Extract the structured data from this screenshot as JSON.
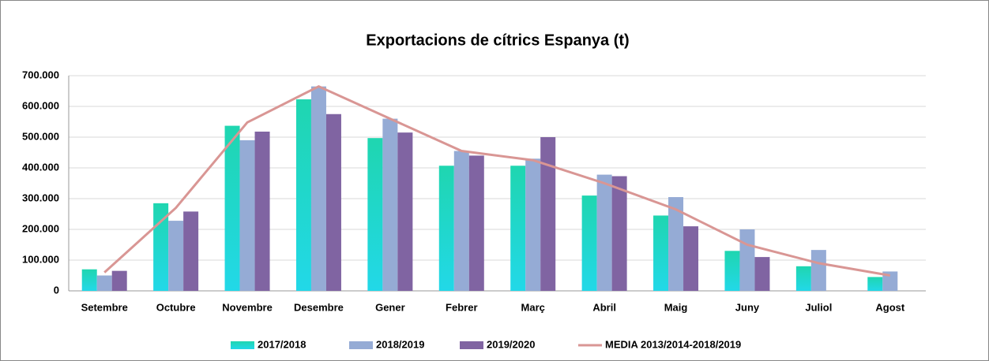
{
  "chart_data": {
    "type": "bar",
    "title": "Exportacions de cítrics Espanya (t)",
    "categories": [
      "Setembre",
      "Octubre",
      "Novembre",
      "Desembre",
      "Gener",
      "Febrer",
      "Març",
      "Abril",
      "Maig",
      "Juny",
      "Juliol",
      "Agost"
    ],
    "series": [
      {
        "name": "2017/2018",
        "color": "#1fd6c4",
        "values": [
          70000,
          285000,
          537000,
          623000,
          497000,
          407000,
          407000,
          310000,
          245000,
          130000,
          80000,
          45000
        ]
      },
      {
        "name": "2018/2019",
        "color": "#95abd5",
        "values": [
          50000,
          228000,
          490000,
          665000,
          560000,
          455000,
          430000,
          378000,
          305000,
          200000,
          133000,
          63000
        ]
      },
      {
        "name": "2019/2020",
        "color": "#8064a2",
        "values": [
          65000,
          258000,
          518000,
          575000,
          515000,
          440000,
          500000,
          373000,
          210000,
          110000,
          null,
          null
        ]
      },
      {
        "name": "MEDIA 2013/2014-2018/2019",
        "type": "line",
        "color": "#d99694",
        "values": [
          60000,
          270000,
          548000,
          665000,
          560000,
          455000,
          425000,
          350000,
          265000,
          150000,
          90000,
          50000
        ]
      }
    ],
    "ylim": [
      0,
      700000
    ],
    "yticks": [
      0,
      {
        "value": 100000,
        "label": "100.000"
      },
      {
        "value": 200000,
        "label": "200.000"
      },
      {
        "value": 300000,
        "label": "300.000"
      },
      {
        "value": 400000,
        "label": "400.000"
      },
      {
        "value": 500000,
        "label": "500.000"
      },
      {
        "value": 600000,
        "label": "600.000"
      },
      {
        "value": 700000,
        "label": "700.000"
      }
    ],
    "grid": true,
    "legend": "bottom"
  }
}
